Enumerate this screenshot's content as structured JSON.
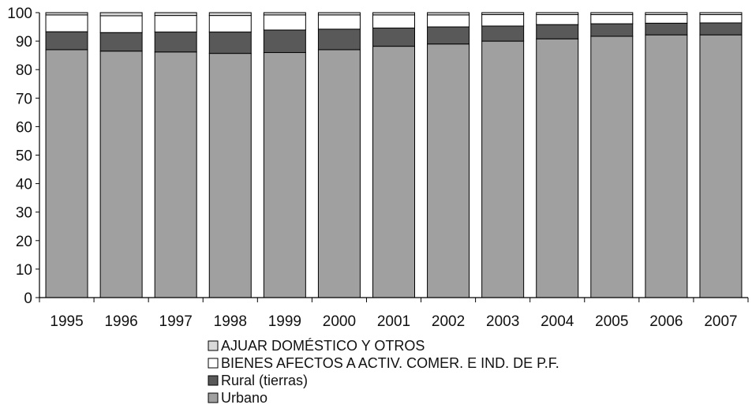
{
  "chart_data": {
    "type": "bar",
    "stacked": true,
    "title": "",
    "xlabel": "",
    "ylabel": "",
    "ylim": [
      0,
      100
    ],
    "yticks": [
      "0",
      "10",
      "20",
      "30",
      "40",
      "50",
      "60",
      "70",
      "80",
      "90",
      "100"
    ],
    "grid": false,
    "legend_position": "bottom-center",
    "categories": [
      "1995",
      "1996",
      "1997",
      "1998",
      "1999",
      "2000",
      "2001",
      "2002",
      "2003",
      "2004",
      "2005",
      "2006",
      "2007"
    ],
    "series": [
      {
        "name": "Urbano",
        "color": "#a0a0a0",
        "values": [
          87.0,
          86.5,
          86.2,
          85.7,
          86.0,
          87.0,
          88.2,
          89.0,
          90.0,
          90.8,
          91.7,
          92.2,
          92.2
        ]
      },
      {
        "name": "Rural (tierras)",
        "color": "#595959",
        "values": [
          6.3,
          6.5,
          7.0,
          7.5,
          7.9,
          7.2,
          6.4,
          6.0,
          5.3,
          5.0,
          4.4,
          4.1,
          4.2
        ]
      },
      {
        "name": "BIENES AFECTOS A ACTIV. COMER. E IND. DE P.F.",
        "color": "#ffffff",
        "values": [
          5.9,
          5.9,
          5.8,
          5.8,
          5.3,
          5.0,
          4.6,
          4.2,
          4.0,
          3.5,
          3.2,
          3.0,
          2.9
        ]
      },
      {
        "name": "AJUAR DOMÉSTICO Y OTROS",
        "color": "#d9d9d9",
        "values": [
          0.8,
          1.1,
          1.0,
          1.0,
          0.8,
          0.8,
          0.8,
          0.8,
          0.7,
          0.7,
          0.7,
          0.7,
          0.7
        ]
      }
    ],
    "legend_order": [
      "AJUAR DOMÉSTICO Y OTROS",
      "BIENES AFECTOS A ACTIV. COMER. E IND. DE P.F.",
      "Rural (tierras)",
      "Urbano"
    ]
  }
}
